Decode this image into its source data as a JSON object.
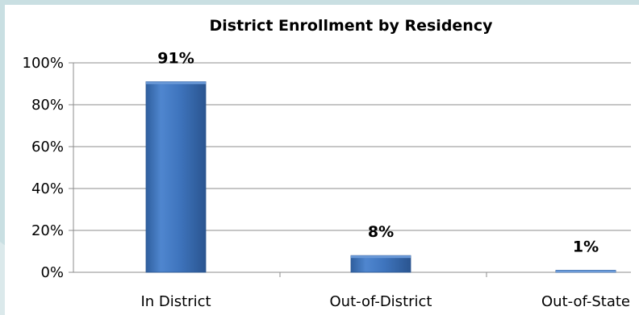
{
  "chart_data": {
    "type": "bar",
    "title": "District  Enrollment by Residency",
    "categories": [
      "In District",
      "Out-of-District",
      "Out-of-State"
    ],
    "values": [
      91,
      8,
      1
    ],
    "data_labels": [
      "91%",
      "8%",
      "1%"
    ],
    "xlabel": "",
    "ylabel": "",
    "ylim": [
      0,
      100
    ],
    "yticks": [
      0,
      20,
      40,
      60,
      80,
      100
    ],
    "ytick_labels": [
      "0%",
      "20%",
      "40%",
      "60%",
      "80%",
      "100%"
    ],
    "grid": true,
    "legend": "none",
    "bar_color": "#3f75be"
  }
}
